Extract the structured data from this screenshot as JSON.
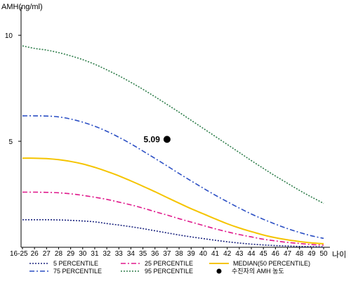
{
  "chart_data": {
    "type": "line",
    "ylabel": "AMH(ng/ml)",
    "xlabel": "나이",
    "ylim": [
      0,
      11
    ],
    "yticks": [
      5,
      10
    ],
    "ytick_labels": [
      "5",
      "10"
    ],
    "x": [
      "16-25",
      "26",
      "27",
      "28",
      "29",
      "30",
      "31",
      "32",
      "33",
      "34",
      "35",
      "36",
      "37",
      "38",
      "39",
      "40",
      "41",
      "42",
      "43",
      "44",
      "45",
      "46",
      "47",
      "48",
      "49",
      "50"
    ],
    "grid": false,
    "legend_position": "bottom",
    "series": [
      {
        "name": "5 PERCENTILE",
        "color": "#1a237e",
        "style": "dotted",
        "values": [
          1.3,
          1.3,
          1.3,
          1.29,
          1.27,
          1.24,
          1.2,
          1.12,
          1.05,
          0.97,
          0.88,
          0.78,
          0.68,
          0.58,
          0.49,
          0.41,
          0.33,
          0.26,
          0.2,
          0.15,
          0.11,
          0.08,
          0.06,
          0.04,
          0.03,
          0.02
        ]
      },
      {
        "name": "25 PERCENTILE",
        "color": "#e0198c",
        "style": "dashdot",
        "values": [
          2.6,
          2.6,
          2.59,
          2.57,
          2.52,
          2.45,
          2.36,
          2.26,
          2.13,
          2.0,
          1.85,
          1.68,
          1.52,
          1.35,
          1.19,
          1.03,
          0.87,
          0.73,
          0.6,
          0.49,
          0.38,
          0.3,
          0.23,
          0.18,
          0.13,
          0.1
        ]
      },
      {
        "name": "MEDIAN(50 PERCENTILE)",
        "color": "#f5c400",
        "style": "solid",
        "values": [
          4.2,
          4.2,
          4.18,
          4.13,
          4.05,
          3.93,
          3.77,
          3.58,
          3.37,
          3.13,
          2.88,
          2.62,
          2.35,
          2.08,
          1.82,
          1.58,
          1.34,
          1.11,
          0.91,
          0.74,
          0.58,
          0.45,
          0.35,
          0.27,
          0.21,
          0.17
        ]
      },
      {
        "name": "75 PERCENTILE",
        "color": "#2b4fc4",
        "style": "dashdot",
        "values": [
          6.2,
          6.2,
          6.19,
          6.15,
          6.05,
          5.9,
          5.71,
          5.47,
          5.19,
          4.88,
          4.54,
          4.19,
          3.84,
          3.48,
          3.13,
          2.79,
          2.46,
          2.15,
          1.85,
          1.57,
          1.32,
          1.09,
          0.88,
          0.7,
          0.54,
          0.42
        ]
      },
      {
        "name": "95 PERCENTILE",
        "color": "#2e7d4a",
        "style": "dotted",
        "values": [
          9.5,
          9.38,
          9.3,
          9.18,
          9.03,
          8.85,
          8.63,
          8.37,
          8.09,
          7.78,
          7.45,
          7.1,
          6.74,
          6.37,
          5.99,
          5.61,
          5.23,
          4.85,
          4.47,
          4.09,
          3.72,
          3.36,
          3.02,
          2.68,
          2.37,
          2.07
        ]
      }
    ],
    "marker": {
      "label": "수진자의 AMH 농도",
      "x": "37",
      "value": 5.09,
      "value_text": "5.09"
    }
  }
}
